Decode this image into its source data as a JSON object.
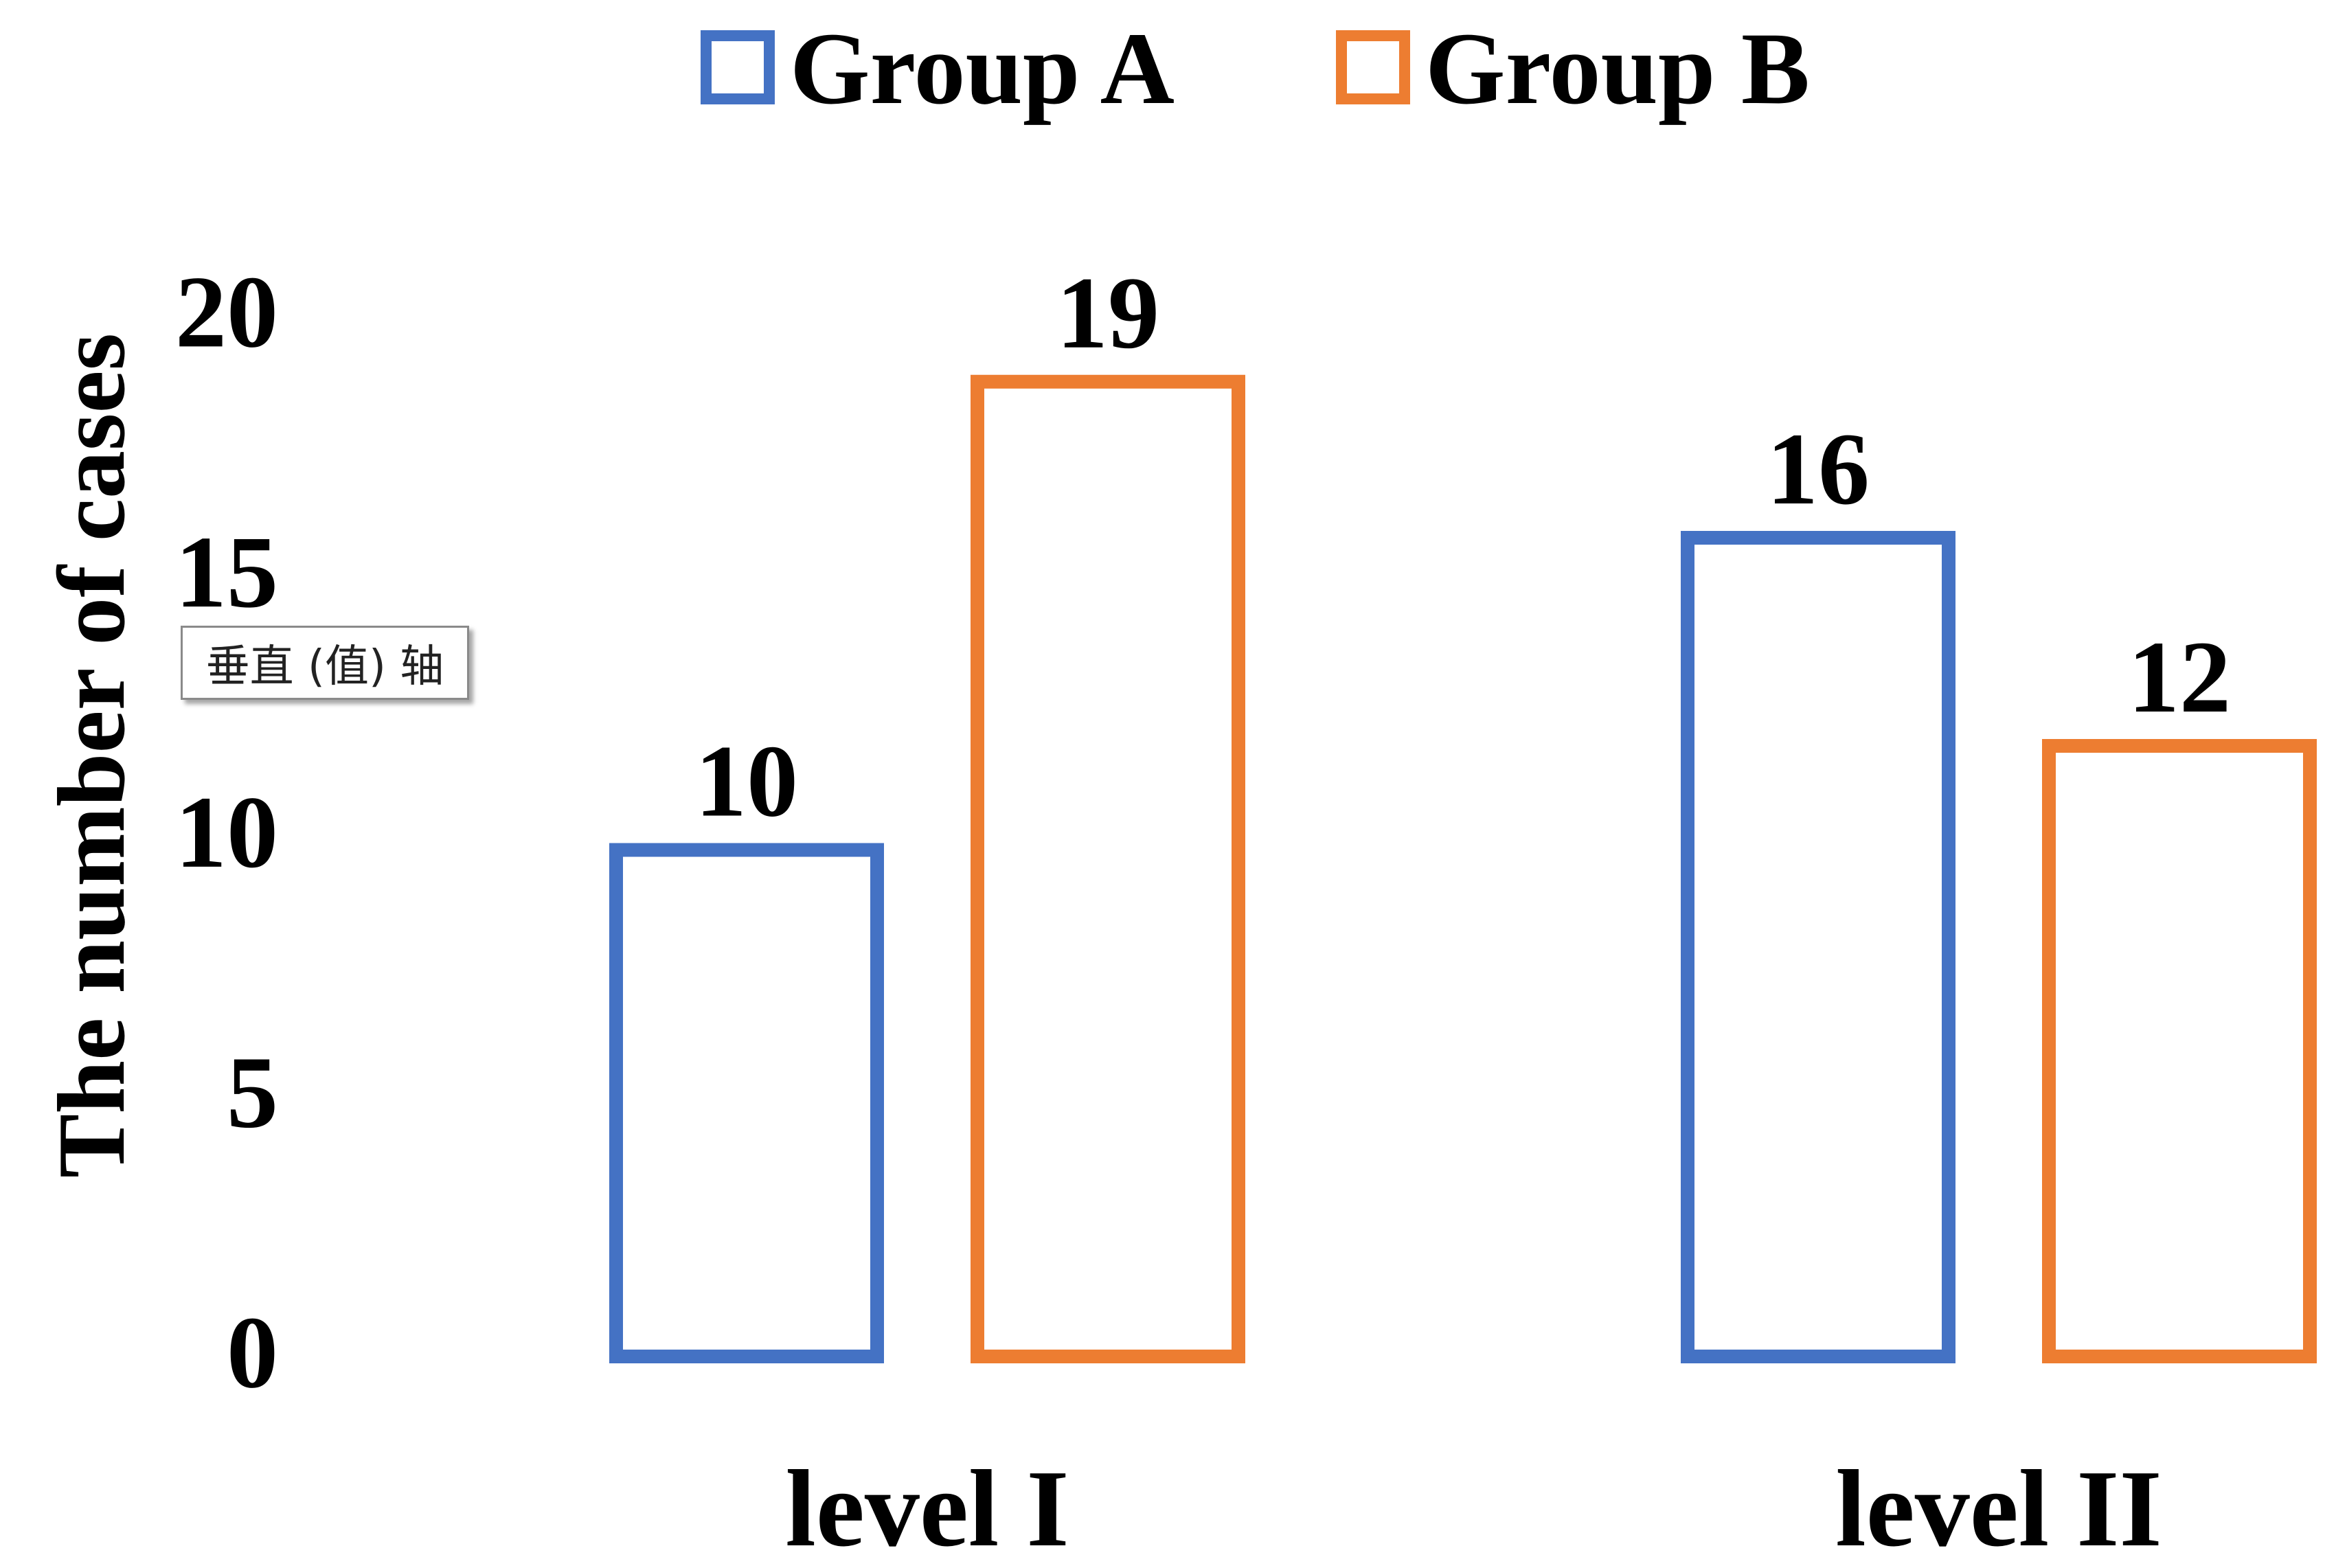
{
  "chart_data": {
    "type": "bar",
    "categories": [
      "level I",
      "level II"
    ],
    "series": [
      {
        "name": "Group A",
        "values": [
          10,
          16
        ],
        "color": "#4472C4"
      },
      {
        "name": "Group B",
        "values": [
          19,
          12
        ],
        "color": "#ED7D31"
      }
    ],
    "ylabel": "The number of cases",
    "xlabel": "",
    "ylim": [
      0,
      20
    ],
    "yticks": [
      0,
      5,
      10,
      15,
      20
    ],
    "legend_position": "top-center",
    "grid": false,
    "bar_fill": "none"
  },
  "tooltip": {
    "text": "垂直 (值) 轴"
  }
}
